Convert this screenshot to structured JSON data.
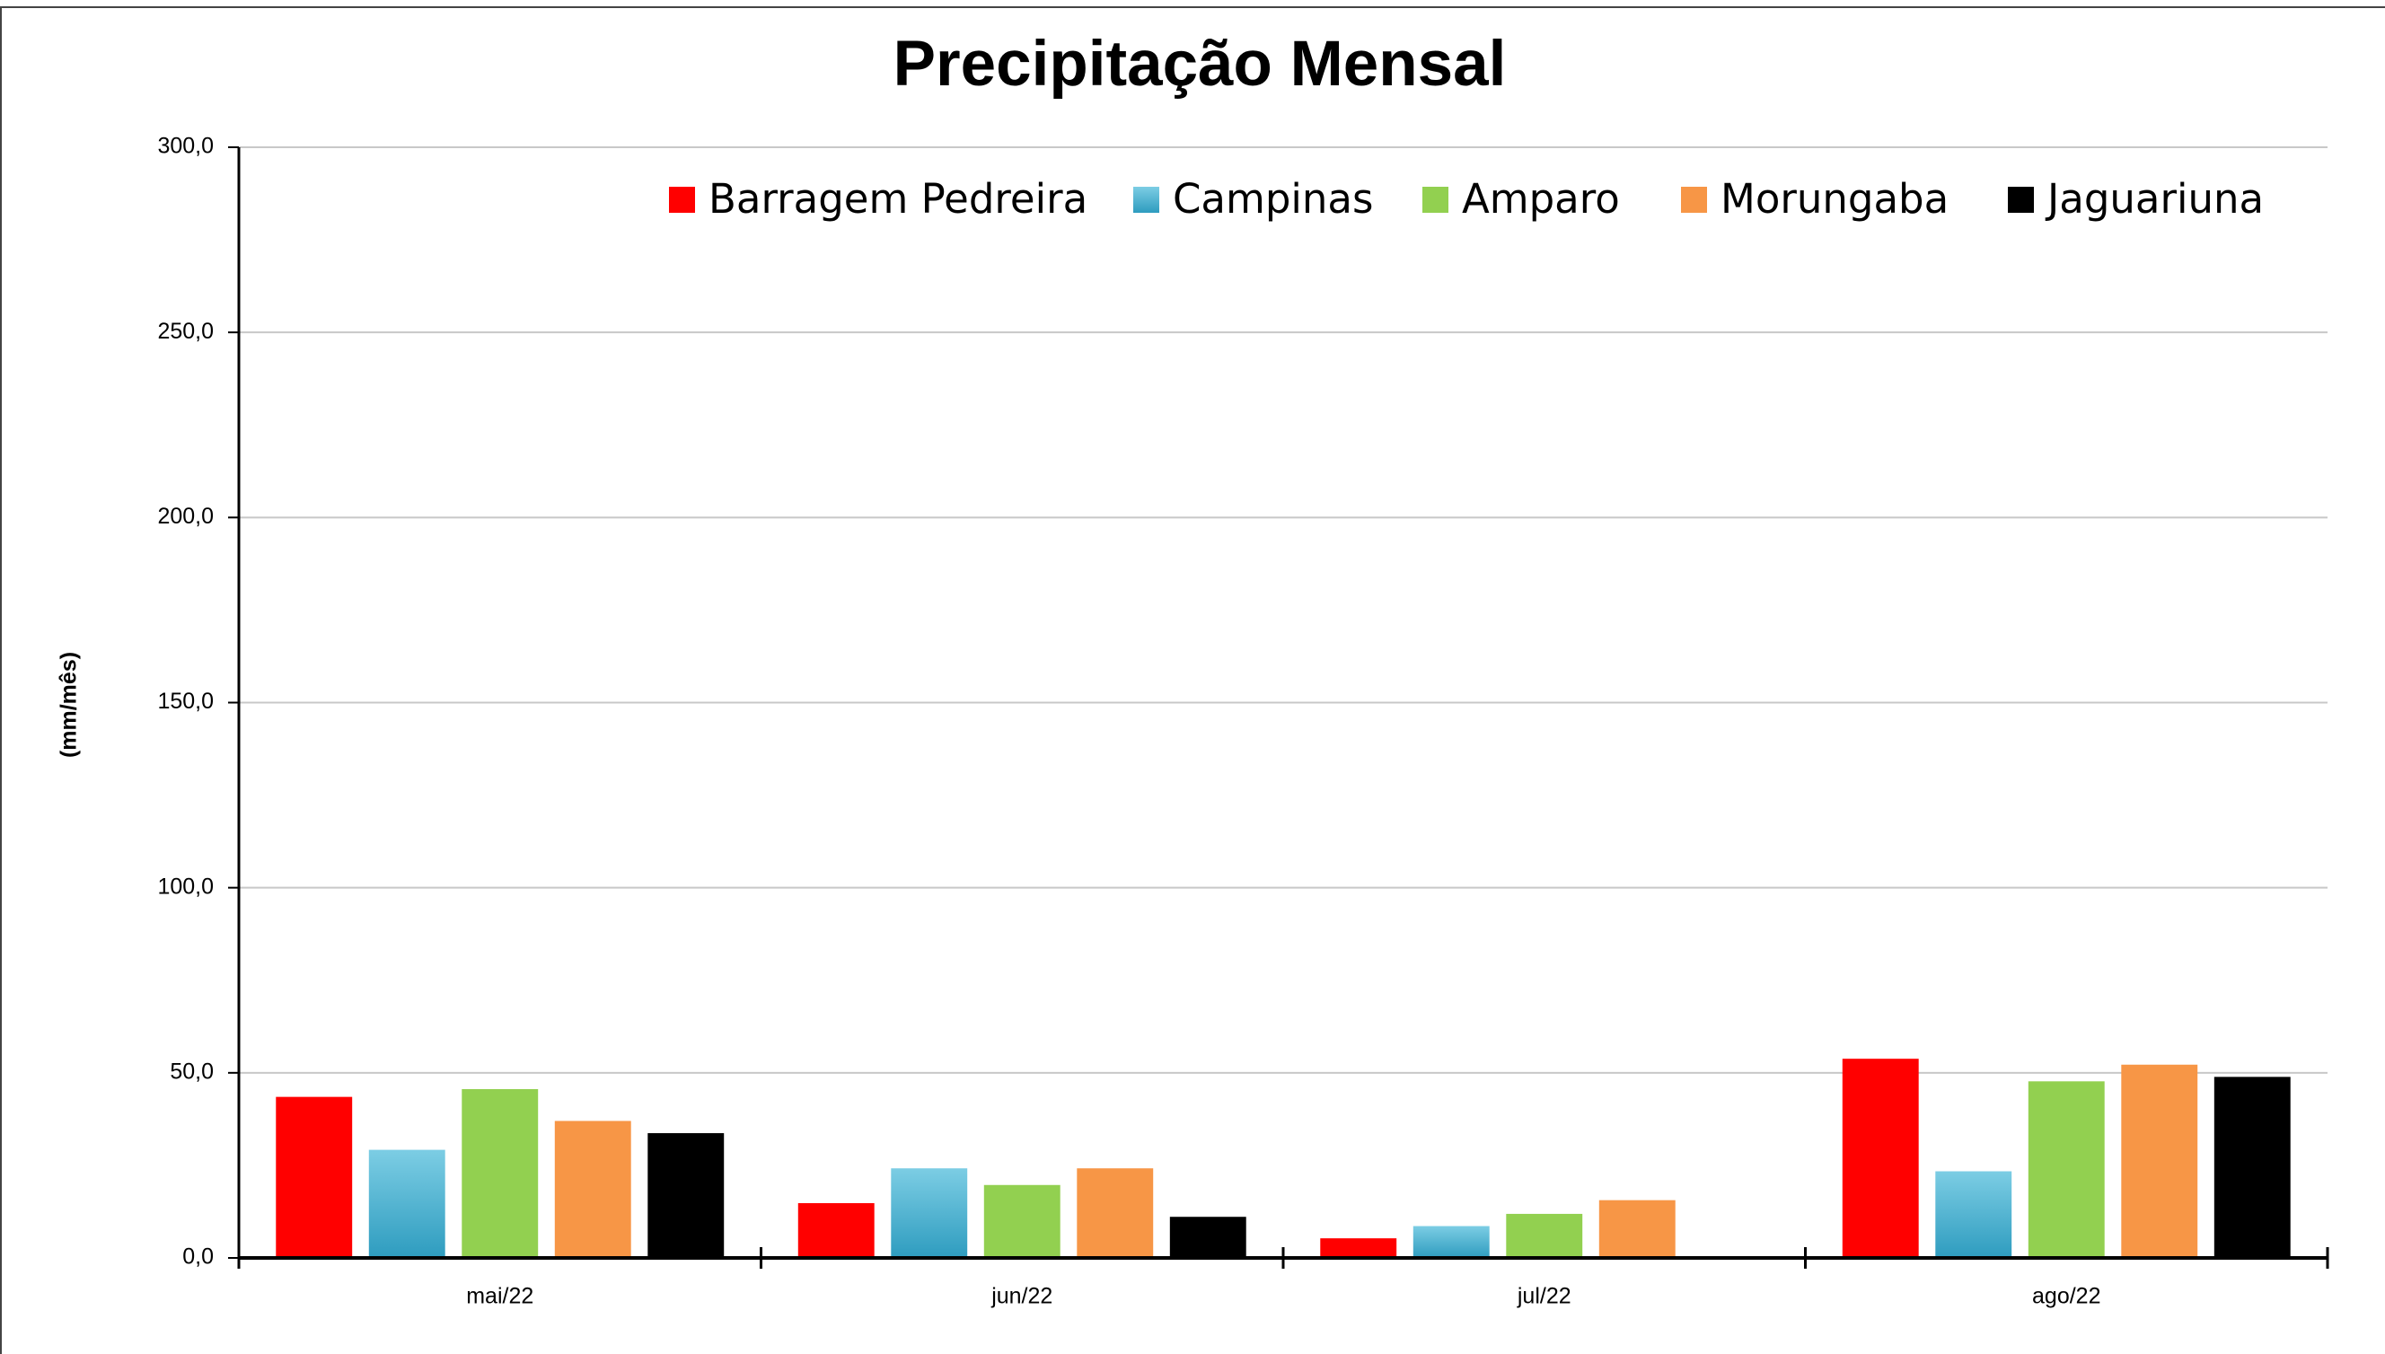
{
  "chart_data": {
    "type": "bar",
    "title": "Precipitação Mensal",
    "y_label": "(mm/mês)",
    "categories": [
      "mai/22",
      "jun/22",
      "jul/22",
      "ago/22"
    ],
    "series": [
      {
        "name": "Barragem Pedreira",
        "color": "#ff0000",
        "values": [
          43.5,
          14.8,
          5.3,
          53.8
        ]
      },
      {
        "name": "Campinas",
        "color": "#3fa9c8",
        "values": [
          29.2,
          24.2,
          8.6,
          23.4
        ]
      },
      {
        "name": "Amparo",
        "color": "#92d050",
        "values": [
          45.6,
          19.7,
          11.9,
          47.7
        ]
      },
      {
        "name": "Morungaba",
        "color": "#f79646",
        "values": [
          37,
          24.2,
          15.6,
          52.2
        ]
      },
      {
        "name": "Jaguariuna",
        "color": "#000000",
        "values": [
          33.7,
          11.1,
          null,
          48.9
        ]
      }
    ],
    "ylim": [
      0,
      300
    ],
    "yticks": [
      {
        "value": 0,
        "label": "0,0"
      },
      {
        "value": 50,
        "label": "50,0"
      },
      {
        "value": 100,
        "label": "100,0"
      },
      {
        "value": 150,
        "label": "150,0"
      },
      {
        "value": 200,
        "label": "200,0"
      },
      {
        "value": 250,
        "label": "250,0"
      },
      {
        "value": 300,
        "label": "300,0"
      }
    ],
    "grid": true,
    "legend": "top-right"
  }
}
